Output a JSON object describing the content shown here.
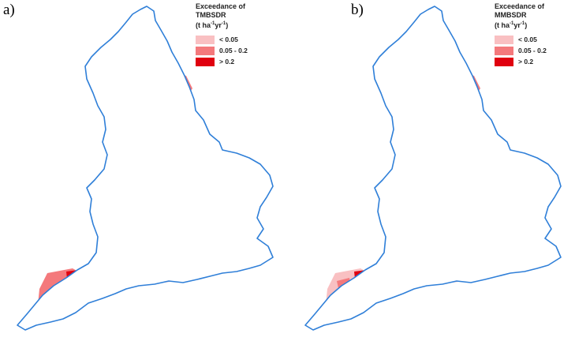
{
  "panels": [
    {
      "letter": "a)",
      "legend": {
        "title_line1": "Exceedance of",
        "title_line2": "TMBSDR",
        "unit_prefix": "(t ha",
        "unit_exp1": "-1",
        "unit_mid": "yr",
        "unit_exp2": "-1",
        "unit_suffix": ")",
        "classes": [
          {
            "label": "< 0.05",
            "color": "#f9c0c2"
          },
          {
            "label": "0.05 - 0.2",
            "color": "#f4797c"
          },
          {
            "label": "> 0.2",
            "color": "#e0000f"
          }
        ]
      }
    },
    {
      "letter": "b)",
      "legend": {
        "title_line1": "Exceedance of",
        "title_line2": "MMBSDR",
        "unit_prefix": "(t ha",
        "unit_exp1": "-1",
        "unit_mid": "yr",
        "unit_exp2": "-1",
        "unit_suffix": ")",
        "classes": [
          {
            "label": "< 0.05",
            "color": "#f9c0c2"
          },
          {
            "label": "0.05 - 0.2",
            "color": "#f4797c"
          },
          {
            "label": "> 0.2",
            "color": "#e0000f"
          }
        ]
      }
    }
  ],
  "colors": {
    "coastline": "#2f7fd8",
    "land": "#ffffff"
  }
}
